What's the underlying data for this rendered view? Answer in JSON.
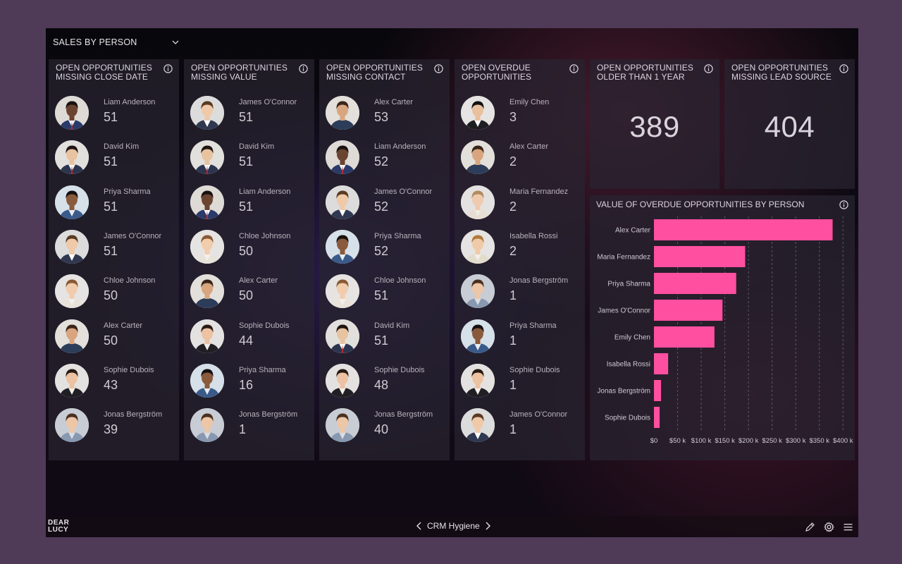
{
  "header": {
    "view_label": "SALES BY PERSON"
  },
  "panels": [
    {
      "title": "OPEN OPPORTUNITIES MISSING CLOSE DATE",
      "rows": [
        {
          "name": "Liam Anderson",
          "value": "51"
        },
        {
          "name": "David Kim",
          "value": "51"
        },
        {
          "name": "Priya Sharma",
          "value": "51"
        },
        {
          "name": "James O'Connor",
          "value": "51"
        },
        {
          "name": "Chloe Johnson",
          "value": "50"
        },
        {
          "name": "Alex Carter",
          "value": "50"
        },
        {
          "name": "Sophie Dubois",
          "value": "43"
        },
        {
          "name": "Jonas Bergström",
          "value": "39"
        }
      ]
    },
    {
      "title": "OPEN OPPORTUNITIES MISSING VALUE",
      "rows": [
        {
          "name": "James O'Connor",
          "value": "51"
        },
        {
          "name": "David Kim",
          "value": "51"
        },
        {
          "name": "Liam Anderson",
          "value": "51"
        },
        {
          "name": "Chloe Johnson",
          "value": "50"
        },
        {
          "name": "Alex Carter",
          "value": "50"
        },
        {
          "name": "Sophie Dubois",
          "value": "44"
        },
        {
          "name": "Priya Sharma",
          "value": "16"
        },
        {
          "name": "Jonas Bergström",
          "value": "1"
        }
      ]
    },
    {
      "title": "OPEN OPPORTUNITIES MISSING CONTACT",
      "rows": [
        {
          "name": "Alex Carter",
          "value": "53"
        },
        {
          "name": "Liam Anderson",
          "value": "52"
        },
        {
          "name": "James O'Connor",
          "value": "52"
        },
        {
          "name": "Priya Sharma",
          "value": "52"
        },
        {
          "name": "Chloe Johnson",
          "value": "51"
        },
        {
          "name": "David Kim",
          "value": "51"
        },
        {
          "name": "Sophie Dubois",
          "value": "48"
        },
        {
          "name": "Jonas Bergström",
          "value": "40"
        }
      ]
    },
    {
      "title": "OPEN OVERDUE OPPORTUNITIES",
      "rows": [
        {
          "name": "Emily Chen",
          "value": "3"
        },
        {
          "name": "Alex Carter",
          "value": "2"
        },
        {
          "name": "Maria Fernandez",
          "value": "2"
        },
        {
          "name": "Isabella Rossi",
          "value": "2"
        },
        {
          "name": "Jonas Bergström",
          "value": "1"
        },
        {
          "name": "Priya Sharma",
          "value": "1"
        },
        {
          "name": "Sophie Dubois",
          "value": "1"
        },
        {
          "name": "James O'Connor",
          "value": "1"
        }
      ]
    }
  ],
  "kpis": [
    {
      "title": "OPEN OPPORTUNITIES OLDER THAN 1 YEAR",
      "value": "389"
    },
    {
      "title": "OPEN OPPORTUNITIES MISSING LEAD SOURCE",
      "value": "404"
    }
  ],
  "chart_title": "VALUE OF OVERDUE OPPORTUNITIES BY PERSON",
  "chart_data": {
    "type": "bar",
    "orientation": "horizontal",
    "categories": [
      "Alex Carter",
      "Maria Fernandez",
      "Priya Sharma",
      "James O'Connor",
      "Emily Chen",
      "Isabella Rossi",
      "Jonas Bergström",
      "Sophie Dubois"
    ],
    "values": [
      378000,
      193000,
      174000,
      145000,
      128000,
      30000,
      15000,
      12000
    ],
    "xlim": [
      0,
      410000
    ],
    "tick_values": [
      0,
      50000,
      100000,
      150000,
      200000,
      250000,
      300000,
      350000,
      400000
    ],
    "tick_labels": [
      "$0",
      "$50 k",
      "$100 k",
      "$150 k",
      "$200 k",
      "$250 k",
      "$300 k",
      "$350 k",
      "$400 k"
    ],
    "grid": true,
    "bar_color": "#ff4fa0"
  },
  "footer": {
    "logo_line1": "DEAR",
    "logo_line2": "LUCY",
    "dashboard_name": "CRM Hygiene"
  },
  "colors": {
    "background": "#4f3a58",
    "accent": "#ff4fa0"
  }
}
